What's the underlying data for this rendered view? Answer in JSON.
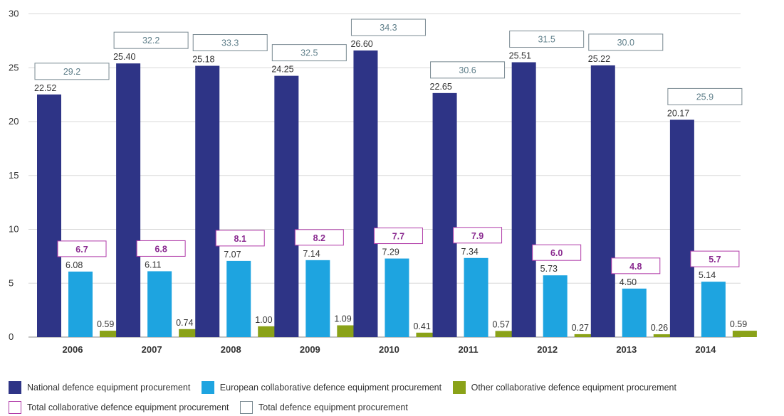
{
  "chart_data": {
    "type": "bar",
    "categories": [
      "2006",
      "2007",
      "2008",
      "2009",
      "2010",
      "2011",
      "2012",
      "2013",
      "2014"
    ],
    "ylim": [
      0,
      30
    ],
    "yticks": [
      0,
      5,
      10,
      15,
      20,
      25,
      30
    ],
    "grid": "horizontal",
    "legend_position": "bottom",
    "series": [
      {
        "name": "National defence equipment procurement",
        "color": "#2e3486",
        "values": [
          22.52,
          25.4,
          25.18,
          24.25,
          26.6,
          22.65,
          25.51,
          25.22,
          20.17
        ],
        "labels": [
          "22.52",
          "25.40",
          "25.18",
          "24.25",
          "26.60",
          "22.65",
          "25.51",
          "25.22",
          "20.17"
        ]
      },
      {
        "name": "European collaborative defence equipment procurement",
        "color": "#1ea4e0",
        "values": [
          6.08,
          6.11,
          7.07,
          7.14,
          7.29,
          7.34,
          5.73,
          4.5,
          5.14
        ],
        "labels": [
          "6.08",
          "6.11",
          "7.07",
          "7.14",
          "7.29",
          "7.34",
          "5.73",
          "4.50",
          "5.14"
        ]
      },
      {
        "name": "Other collaborative defence equipment procurement",
        "color": "#8aa218",
        "values": [
          0.59,
          0.74,
          1.0,
          1.09,
          0.41,
          0.57,
          0.27,
          0.26,
          0.59
        ],
        "labels": [
          "0.59",
          "0.74",
          "1.00",
          "1.09",
          "0.41",
          "0.57",
          "0.27",
          "0.26",
          "0.59"
        ]
      }
    ],
    "totals_collaborative": {
      "name": "Total collaborative defence equipment procurement",
      "color": "#b03aa8",
      "values": [
        6.7,
        6.8,
        8.1,
        8.2,
        7.7,
        7.9,
        6.0,
        4.8,
        5.7
      ],
      "labels": [
        "6.7",
        "6.8",
        "8.1",
        "8.2",
        "7.7",
        "7.9",
        "6.0",
        "4.8",
        "5.7"
      ]
    },
    "totals_defence": {
      "name": "Total defence equipment procurement",
      "color": "#4f8a8e",
      "values": [
        29.2,
        32.2,
        33.3,
        32.5,
        34.3,
        30.6,
        31.5,
        30.0,
        25.9
      ],
      "labels": [
        "29.2",
        "32.2",
        "33.3",
        "32.5",
        "34.3",
        "30.6",
        "31.5",
        "30.0",
        "25.9"
      ]
    }
  }
}
